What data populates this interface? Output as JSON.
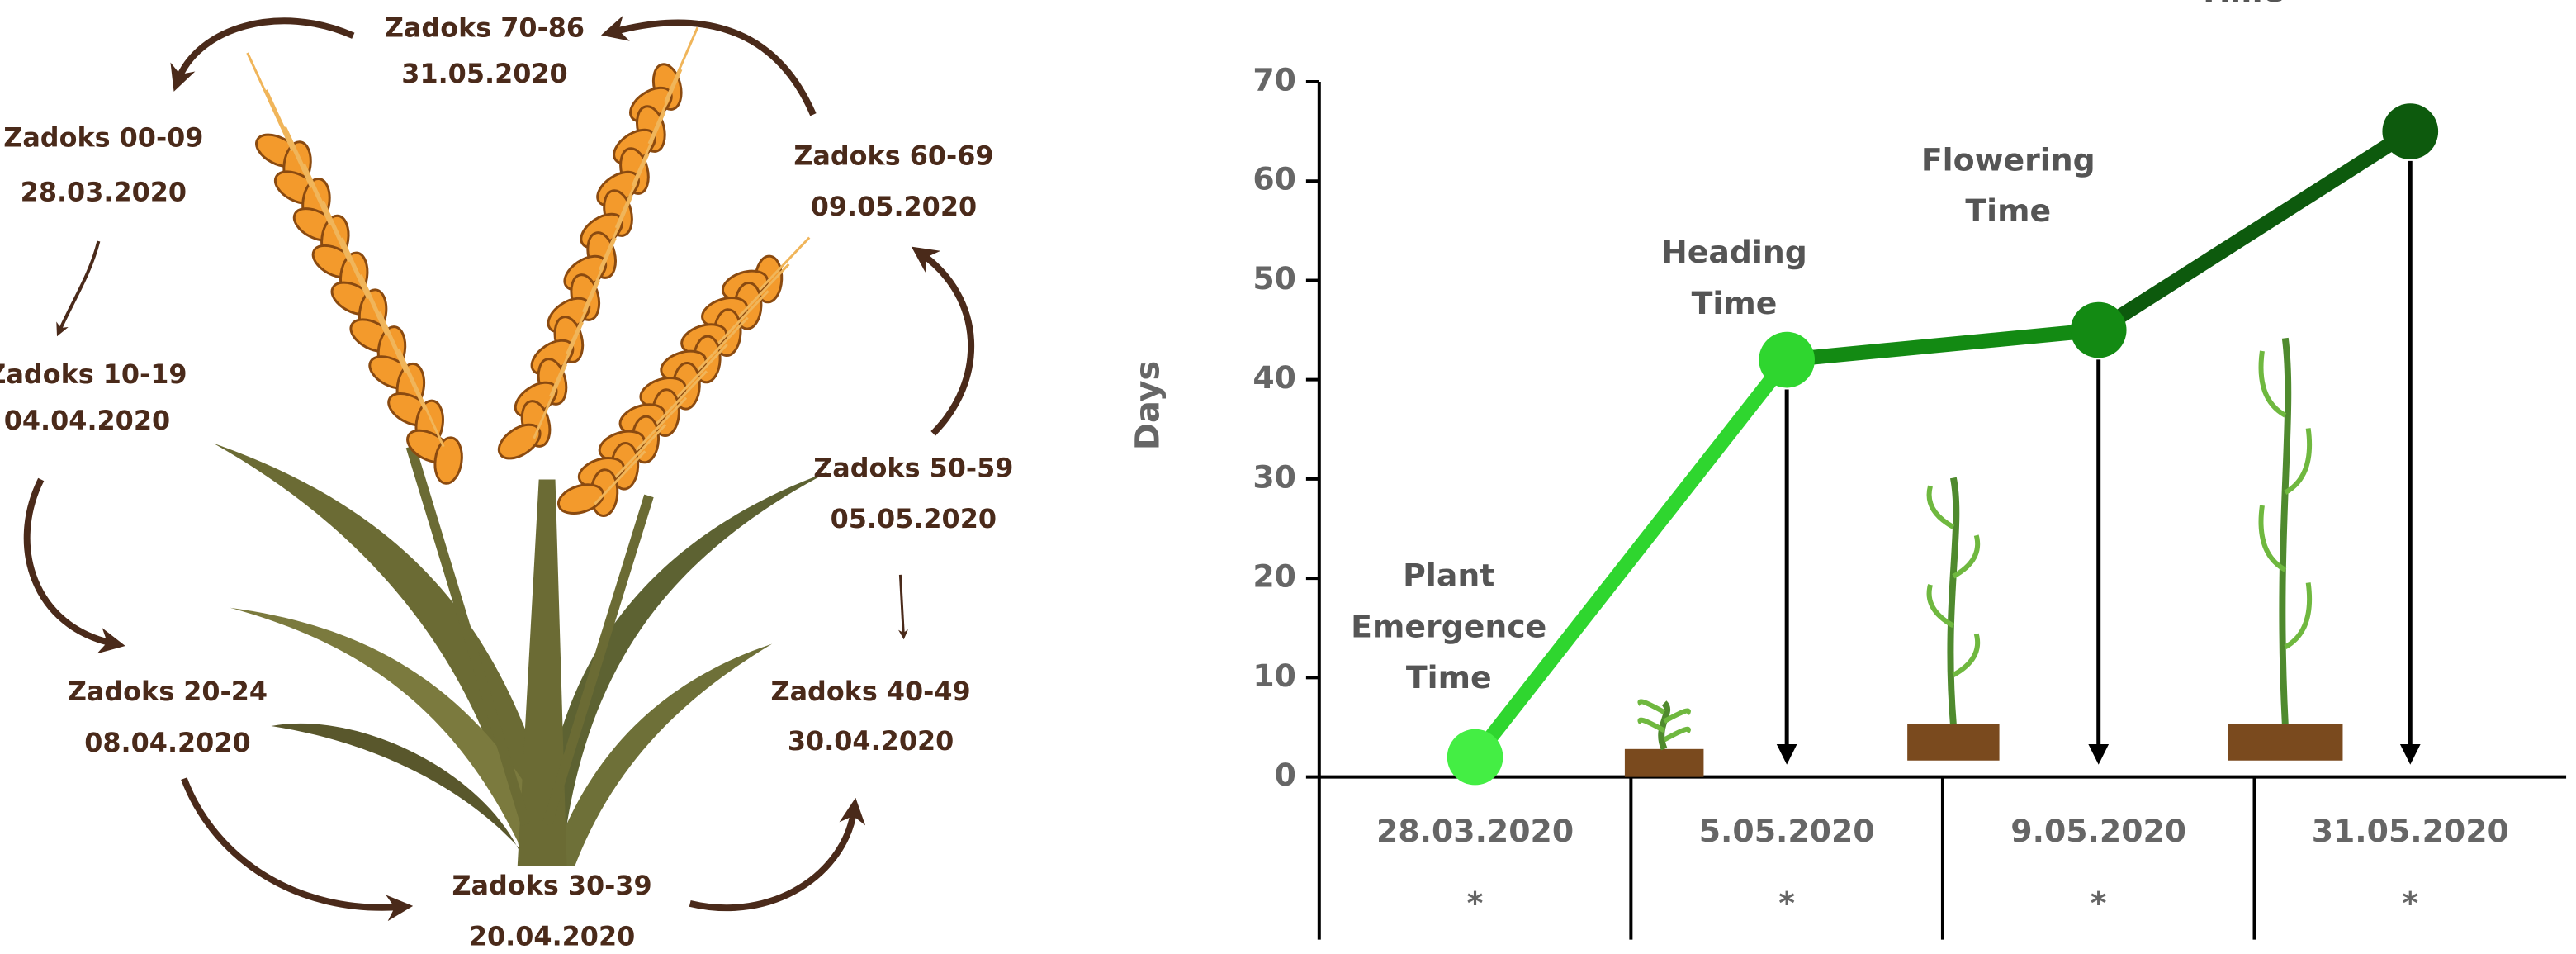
{
  "diagram": {
    "stages": [
      {
        "name": "Zadoks 00-09",
        "date": "28.03.2020"
      },
      {
        "name": "Zadoks 10-19",
        "date": "04.04.2020"
      },
      {
        "name": "Zadoks 20-24",
        "date": "08.04.2020"
      },
      {
        "name": "Zadoks 30-39",
        "date": "20.04.2020"
      },
      {
        "name": "Zadoks 40-49",
        "date": "30.04.2020"
      },
      {
        "name": "Zadoks 50-59",
        "date": "05.05.2020"
      },
      {
        "name": "Zadoks 60-69",
        "date": "09.05.2020"
      },
      {
        "name": "Zadoks 70-86",
        "date": "31.05.2020"
      }
    ]
  },
  "chart_data": {
    "type": "line",
    "y_label": "Days",
    "categories": [
      "28.03.2020",
      "5.05.2020",
      "9.05.2020",
      "31.05.2020"
    ],
    "category_notes": [
      "*",
      "*",
      "*",
      "*"
    ],
    "values": [
      2,
      42,
      45,
      65
    ],
    "point_labels": [
      "Plant Emergence Time",
      "Heading Time",
      "Flowering Time",
      "Harvesting Time"
    ],
    "colors": [
      "#44ee44",
      "#2fd62f",
      "#138a13",
      "#0d5a0d"
    ],
    "ylim": [
      0,
      70
    ],
    "yticks": [
      0,
      10,
      20,
      30,
      40,
      50,
      60,
      70
    ]
  }
}
